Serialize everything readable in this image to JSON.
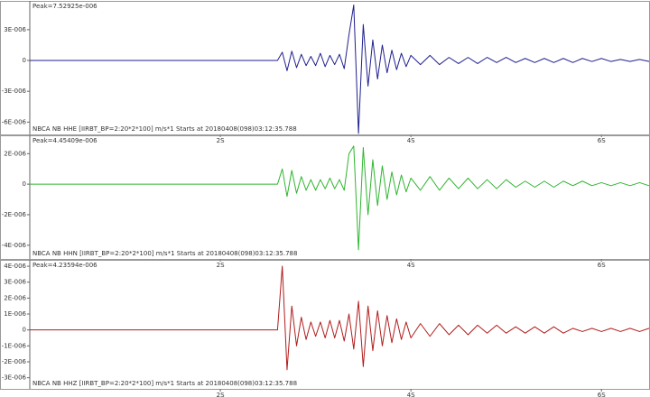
{
  "chart_data": [
    {
      "type": "line",
      "annotation": "Peak=7.52925e-006",
      "title": "NBCA NB HHE  [IIRBT_BP=2:20*2*100] m/s*1 Starts at 20180408(098)03:12:35.788",
      "color": "#1f1f8f",
      "x": [
        0,
        2.6,
        2.65,
        2.7,
        2.75,
        2.8,
        2.85,
        2.9,
        2.95,
        3.0,
        3.05,
        3.1,
        3.15,
        3.2,
        3.25,
        3.3,
        3.35,
        3.4,
        3.45,
        3.5,
        3.55,
        3.6,
        3.65,
        3.7,
        3.75,
        3.8,
        3.85,
        3.9,
        3.95,
        4.0,
        4.1,
        4.2,
        4.3,
        4.4,
        4.5,
        4.6,
        4.7,
        4.8,
        4.9,
        5.0,
        5.1,
        5.2,
        5.3,
        5.4,
        5.5,
        5.6,
        5.7,
        5.8,
        5.9,
        6.0,
        6.1,
        6.2,
        6.3,
        6.4,
        6.5
      ],
      "values": [
        0,
        0,
        8e-07,
        -1e-06,
        9e-07,
        -7e-07,
        6e-07,
        -5e-07,
        4e-07,
        -5e-07,
        7e-07,
        -6e-07,
        5e-07,
        -4e-07,
        6e-07,
        -8e-07,
        2.5e-06,
        5.4e-06,
        -7.1e-06,
        3.5e-06,
        -2.5e-06,
        2e-06,
        -1.8e-06,
        1.5e-06,
        -1.2e-06,
        1e-06,
        -9e-07,
        7e-07,
        -6e-07,
        5e-07,
        -4e-07,
        5e-07,
        -4e-07,
        3e-07,
        -3e-07,
        3e-07,
        -3e-07,
        3e-07,
        -2e-07,
        3e-07,
        -2e-07,
        2e-07,
        -2e-07,
        2e-07,
        -2e-07,
        2e-07,
        -2e-07,
        2e-07,
        -1e-07,
        2e-07,
        -1e-07,
        1e-07,
        -1e-07,
        1e-07,
        -1e-07
      ],
      "xlim": [
        0,
        6.5
      ],
      "xticks": [
        {
          "value": 2,
          "label": "2S"
        },
        {
          "value": 4,
          "label": "4S"
        },
        {
          "value": 6,
          "label": "6S"
        }
      ],
      "ylim": [
        -7.2e-06,
        5.8e-06
      ],
      "yticks": [
        {
          "value": 3e-06,
          "label": "3E-006"
        },
        0,
        {
          "value": -3e-06,
          "label": "-3E-006"
        },
        {
          "value": -6e-06,
          "label": "-6E-006"
        }
      ]
    },
    {
      "type": "line",
      "annotation": "Peak=4.45409e-006",
      "title": "NBCA NB HHN  [IIRBT_BP=2:20*2*100] m/s*1 Starts at 20180408(098)03:12:35.788",
      "color": "#2fb52f",
      "x": [
        0,
        2.6,
        2.65,
        2.7,
        2.75,
        2.8,
        2.85,
        2.9,
        2.95,
        3.0,
        3.05,
        3.1,
        3.15,
        3.2,
        3.25,
        3.3,
        3.35,
        3.4,
        3.45,
        3.5,
        3.55,
        3.6,
        3.65,
        3.7,
        3.75,
        3.8,
        3.85,
        3.9,
        3.95,
        4.0,
        4.1,
        4.2,
        4.3,
        4.4,
        4.5,
        4.6,
        4.7,
        4.8,
        4.9,
        5.0,
        5.1,
        5.2,
        5.3,
        5.4,
        5.5,
        5.6,
        5.7,
        5.8,
        5.9,
        6.0,
        6.1,
        6.2,
        6.3,
        6.4,
        6.5
      ],
      "values": [
        0,
        0,
        1e-06,
        -8e-07,
        9e-07,
        -6e-07,
        5e-07,
        -4e-07,
        3e-07,
        -4e-07,
        3e-07,
        -3e-07,
        4e-07,
        -3e-07,
        3e-07,
        -4e-07,
        2e-06,
        2.5e-06,
        -4.3e-06,
        2.4e-06,
        -2e-06,
        1.6e-06,
        -1.4e-06,
        1.2e-06,
        -1e-06,
        8e-07,
        -7e-07,
        6e-07,
        -5e-07,
        4e-07,
        -4e-07,
        5e-07,
        -4e-07,
        4e-07,
        -3e-07,
        4e-07,
        -3e-07,
        3e-07,
        -3e-07,
        3e-07,
        -2e-07,
        2e-07,
        -2e-07,
        2e-07,
        -2e-07,
        2e-07,
        -1e-07,
        2e-07,
        -1e-07,
        1e-07,
        -1e-07,
        1e-07,
        -1e-07,
        1e-07,
        -1e-07
      ],
      "xlim": [
        0,
        6.5
      ],
      "xticks": [
        {
          "value": 2,
          "label": "2S"
        },
        {
          "value": 4,
          "label": "4S"
        },
        {
          "value": 6,
          "label": "6S"
        }
      ],
      "ylim": [
        -4.9e-06,
        3.2e-06
      ],
      "yticks": [
        {
          "value": 2e-06,
          "label": "2E-006"
        },
        0,
        {
          "value": -2e-06,
          "label": "-2E-006"
        },
        {
          "value": -4e-06,
          "label": "-4E-006"
        }
      ]
    },
    {
      "type": "line",
      "annotation": "Peak=4.23594e-006",
      "title": "NBCA NB HHZ  [IIRBT_BP=2:20*2*100] m/s*1 Starts at 20180408(098)03:12:35.788",
      "color": "#b01c1c",
      "x": [
        0,
        2.6,
        2.65,
        2.7,
        2.75,
        2.8,
        2.85,
        2.9,
        2.95,
        3.0,
        3.05,
        3.1,
        3.15,
        3.2,
        3.25,
        3.3,
        3.35,
        3.4,
        3.45,
        3.5,
        3.55,
        3.6,
        3.65,
        3.7,
        3.75,
        3.8,
        3.85,
        3.9,
        3.95,
        4.0,
        4.1,
        4.2,
        4.3,
        4.4,
        4.5,
        4.6,
        4.7,
        4.8,
        4.9,
        5.0,
        5.1,
        5.2,
        5.3,
        5.4,
        5.5,
        5.6,
        5.7,
        5.8,
        5.9,
        6.0,
        6.1,
        6.2,
        6.3,
        6.4,
        6.5
      ],
      "values": [
        0,
        0,
        4e-06,
        -2.5e-06,
        1.5e-06,
        -1e-06,
        8e-07,
        -6e-07,
        5e-07,
        -4e-07,
        5e-07,
        -5e-07,
        6e-07,
        -5e-07,
        6e-07,
        -7e-07,
        1e-06,
        -1.2e-06,
        1.8e-06,
        -2.3e-06,
        1.5e-06,
        -1.3e-06,
        1.2e-06,
        -1e-06,
        9e-07,
        -8e-07,
        7e-07,
        -6e-07,
        5e-07,
        -5e-07,
        4e-07,
        -4e-07,
        4e-07,
        -3e-07,
        3e-07,
        -3e-07,
        3e-07,
        -2e-07,
        3e-07,
        -2e-07,
        2e-07,
        -2e-07,
        2e-07,
        -2e-07,
        2e-07,
        -2e-07,
        1e-07,
        -1e-07,
        1e-07,
        -1e-07,
        1e-07,
        -1e-07,
        1e-07,
        -1e-07,
        1e-07
      ],
      "xlim": [
        0,
        6.5
      ],
      "xticks": [
        {
          "value": 2,
          "label": "2S"
        },
        {
          "value": 4,
          "label": "4S"
        },
        {
          "value": 6,
          "label": "6S"
        }
      ],
      "ylim": [
        -3.7e-06,
        4.4e-06
      ],
      "yticks": [
        {
          "value": 4e-06,
          "label": "4E-006"
        },
        {
          "value": 3e-06,
          "label": "3E-006"
        },
        {
          "value": 2e-06,
          "label": "2E-006"
        },
        {
          "value": 1e-06,
          "label": "1E-006"
        },
        0,
        {
          "value": -1e-06,
          "label": "-1E-006"
        },
        {
          "value": -2e-06,
          "label": "-2E-006"
        },
        {
          "value": -3e-06,
          "label": "-3E-006"
        }
      ]
    }
  ]
}
